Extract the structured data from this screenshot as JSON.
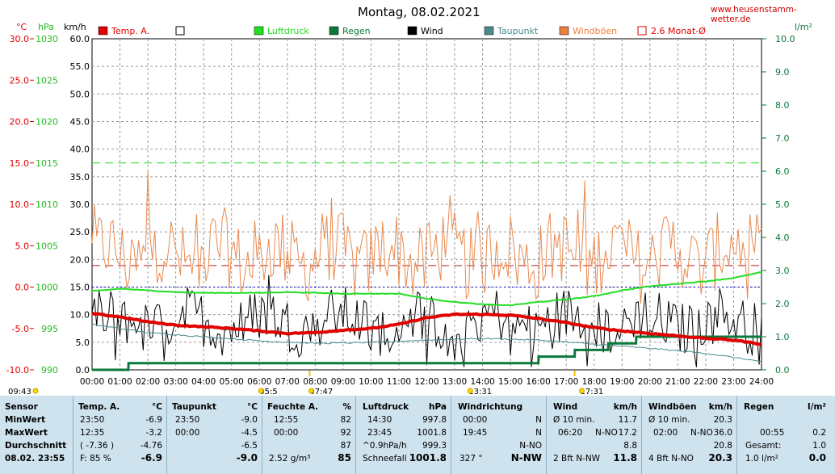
{
  "site": "www.heusenstamm-wetter.de",
  "chart_data": {
    "type": "line",
    "title": "Montag, 08.02.2021",
    "units": {
      "temp": "°C",
      "pressure": "hPa",
      "wind": "km/h",
      "rain": "l/m²"
    },
    "legend": [
      {
        "name": "Temp. A.",
        "color": "#e00000"
      },
      {
        "name": "",
        "color": "#ffffff"
      },
      {
        "name": "Luftdruck",
        "color": "#22dd22"
      },
      {
        "name": "Regen",
        "color": "#0a7a3a"
      },
      {
        "name": "Wind",
        "color": "#000000"
      },
      {
        "name": "Taupunkt",
        "color": "#4a8a8a"
      },
      {
        "name": "Windböen",
        "color": "#e88040"
      },
      {
        "name": "2.6 Monat-Ø",
        "color": "#e00000"
      }
    ],
    "temp_ticks": [
      "30.0",
      "25.0",
      "20.0",
      "15.0",
      "10.0",
      "5.0",
      "0.0",
      "-5.0",
      "-10.0"
    ],
    "pressure_ticks": [
      "1030",
      "1025",
      "1020",
      "1015",
      "1010",
      "1005",
      "1000",
      "995",
      "990"
    ],
    "wind_ticks": [
      "60.0",
      "55.0",
      "50.0",
      "45.0",
      "40.0",
      "35.0",
      "30.0",
      "25.0",
      "20.0",
      "15.0",
      "10.0",
      "5.0",
      "0.0"
    ],
    "rain_ticks": [
      "10.0",
      "9.0",
      "8.0",
      "7.0",
      "6.0",
      "5.0",
      "4.0",
      "3.0",
      "2.0",
      "1.0",
      "0.0"
    ],
    "x_ticks": [
      "00:00",
      "01:00",
      "02:00",
      "03:00",
      "04:00",
      "05:00",
      "06:00",
      "07:00",
      "08:00",
      "09:00",
      "10:00",
      "11:00",
      "12:00",
      "13:00",
      "14:00",
      "15:00",
      "16:00",
      "17:00",
      "18:00",
      "19:00",
      "20:00",
      "21:00",
      "22:00",
      "23:00",
      "24:00"
    ],
    "ylim_temp": [
      -10,
      30
    ],
    "ylim_wind": [
      0,
      60
    ],
    "ylim_rain": [
      0,
      10
    ],
    "reference_lines": {
      "month_avg_temp": 2.6,
      "pressure_ref": 1015,
      "wind_ref": 15
    },
    "sun_markers": [
      {
        "label": "09:43",
        "hour": -0.5
      },
      {
        "label": "05:5",
        "hour": 6.0
      },
      {
        "label": "07:47",
        "hour": 7.8
      },
      {
        "label": "13:31",
        "hour": 13.5
      },
      {
        "label": "17:31",
        "hour": 17.5
      }
    ],
    "series": [
      {
        "name": "Temp. A.",
        "unit": "°C",
        "x": [
          0,
          1,
          2,
          3,
          4,
          5,
          6,
          7,
          8,
          9,
          10,
          11,
          12,
          13,
          14,
          15,
          16,
          17,
          18,
          19,
          20,
          21,
          22,
          23,
          24
        ],
        "values": [
          -3.2,
          -3.6,
          -4.2,
          -4.6,
          -4.8,
          -5.0,
          -5.3,
          -5.6,
          -5.5,
          -5.2,
          -5.0,
          -4.5,
          -3.7,
          -3.3,
          -3.3,
          -3.4,
          -3.8,
          -4.3,
          -4.9,
          -5.3,
          -5.6,
          -5.9,
          -6.2,
          -6.4,
          -6.9
        ]
      },
      {
        "name": "Luftdruck",
        "unit": "hPa",
        "x": [
          0,
          1,
          2,
          3,
          4,
          5,
          6,
          7,
          8,
          9,
          10,
          11,
          12,
          13,
          14,
          15,
          16,
          17,
          18,
          19,
          20,
          21,
          22,
          23,
          24
        ],
        "values": [
          999.5,
          999.8,
          999.6,
          999.4,
          999.3,
          999.3,
          999.3,
          999.4,
          999.3,
          999.2,
          999.2,
          999.2,
          998.6,
          998.2,
          997.9,
          997.8,
          998.2,
          998.5,
          998.9,
          999.6,
          1000.1,
          1000.4,
          1000.7,
          1001.1,
          1001.8
        ]
      },
      {
        "name": "Taupunkt",
        "unit": "°C",
        "x": [
          0,
          2,
          4,
          6,
          8,
          10,
          12,
          14,
          16,
          18,
          20,
          22,
          24
        ],
        "values": [
          -4.5,
          -5.5,
          -6.0,
          -6.5,
          -6.8,
          -6.7,
          -6.4,
          -6.2,
          -6.4,
          -6.9,
          -7.4,
          -8.0,
          -9.0
        ]
      },
      {
        "name": "Regen",
        "unit": "l/m²",
        "x": [
          0,
          1.3,
          1.31,
          16,
          16.01,
          17.3,
          17.31,
          18.5,
          18.51,
          19.5,
          19.51,
          24
        ],
        "values": [
          0,
          0,
          0.2,
          0.2,
          0.4,
          0.4,
          0.6,
          0.6,
          0.8,
          0.8,
          1.0,
          1.0
        ]
      },
      {
        "name": "Wind",
        "unit": "km/h",
        "base": 8.8,
        "max": 17.2
      },
      {
        "name": "Windböen",
        "unit": "km/h",
        "base": 20.8,
        "max": 36.0
      }
    ]
  },
  "table": {
    "sensor": {
      "header": "Sensor",
      "min": "MinWert",
      "max": "MaxWert",
      "avg": "Durchschnitt",
      "now": "08.02. 23:55"
    },
    "temp": {
      "header": "Temp. A.",
      "unit": "°C",
      "min_time": "23:50",
      "min_val": "-6.9",
      "max_time": "12:35",
      "max_val": "-3.2",
      "avg_paren": "( -7.36 )",
      "avg_val": "-4.76",
      "now_f": "F: 85 %",
      "now_val": "-6.9"
    },
    "dew": {
      "header": "Taupunkt",
      "unit": "°C",
      "min_time": "23:50",
      "min_val": "-9.0",
      "max_time": "00:00",
      "max_val": "-4.5",
      "avg_val": "-6.5",
      "now_val": "-9.0"
    },
    "hum": {
      "header": "Feuchte A.",
      "unit": "%",
      "min_time": "12:55",
      "min_val": "82",
      "max_time": "00:00",
      "max_val": "92",
      "avg_val": "87",
      "now_abs": "2.52 g/m³",
      "now_val": "85"
    },
    "press": {
      "header": "Luftdruck",
      "unit": "hPa",
      "min_time": "14:30",
      "min_val": "997.8",
      "max_time": "23:45",
      "max_val": "1001.8",
      "avg_label": "^0.9hPa/h",
      "avg_val": "999.3",
      "now_label": "Schneefall",
      "now_val": "1001.8"
    },
    "dir": {
      "header": "Windrichtung",
      "min_time": "00:00",
      "min_val": "N",
      "max_time": "19:45",
      "max_val": "N",
      "avg_val": "N-NO",
      "now_deg": "327 °",
      "now_val": "N-NW"
    },
    "wind": {
      "header": "Wind",
      "unit": "km/h",
      "r1_label": "Ø 10 min.",
      "r1_val": "11.7",
      "r2_time": "06:20",
      "r2_dir": "N-NO",
      "r2_val": "17.2",
      "avg_val": "8.8",
      "now_bft": "2 Bft N-NW",
      "now_val": "11.8"
    },
    "gust": {
      "header": "Windböen",
      "unit": "km/h",
      "r1_label": "Ø 10 min.",
      "r1_val": "20.3",
      "r2_time": "02:00",
      "r2_dir": "N-NO",
      "r2_val": "36.0",
      "avg_val": "20.8",
      "now_bft": "4 Bft N-NO",
      "now_val": "20.3"
    },
    "rain": {
      "header": "Regen",
      "unit": "l/m²",
      "r1_time": "00:55",
      "r1_val": "0.2",
      "r2_label": "Gesamt:",
      "r2_val": "1.0",
      "now_label": "1.0 l/m²",
      "now_val": "0.0"
    }
  }
}
